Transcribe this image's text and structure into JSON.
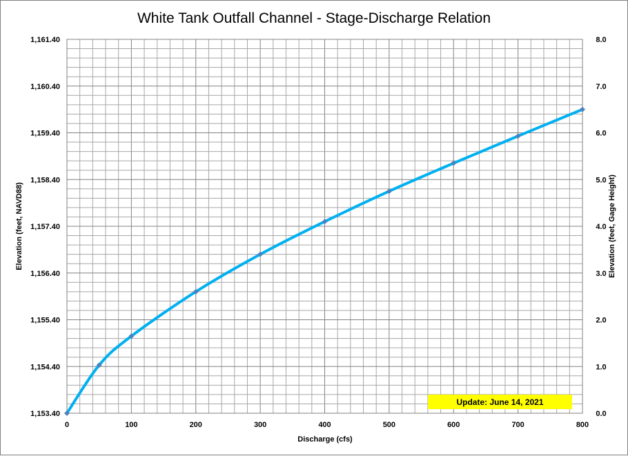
{
  "chart_data": {
    "type": "line",
    "title": "White Tank Outfall Channel - Stage-Discharge Relation",
    "xlabel": "Discharge  (cfs)",
    "ylabel": "Elevation  (feet, NAVD88)",
    "y2label": "Elevation  (feet, Gage  Height)",
    "xlim": [
      0,
      800
    ],
    "ylim": [
      1153.4,
      1161.4
    ],
    "y2lim": [
      0.0,
      8.0
    ],
    "x_ticks": [
      "0",
      "100",
      "200",
      "300",
      "400",
      "500",
      "600",
      "700",
      "800"
    ],
    "y_ticks": [
      "1,153.40",
      "1,154.40",
      "1,155.40",
      "1,156.40",
      "1,157.40",
      "1,158.40",
      "1,159.40",
      "1,160.40",
      "1,161.40"
    ],
    "y2_ticks": [
      "0.0",
      "1.0",
      "2.0",
      "3.0",
      "4.0",
      "5.0",
      "6.0",
      "7.0",
      "8.0"
    ],
    "grid": true,
    "series": [
      {
        "x": [
          0,
          50,
          100,
          200,
          300,
          400,
          500,
          600,
          700,
          800
        ],
        "y": [
          1153.4,
          1154.43,
          1155.05,
          1156.0,
          1156.8,
          1157.5,
          1158.15,
          1158.75,
          1159.33,
          1159.9
        ],
        "color": "#00b0f0",
        "marker_color": "#4f81bd"
      }
    ],
    "annotation": "Update: June 14, 2021",
    "annotation_color": "#ffff00"
  }
}
